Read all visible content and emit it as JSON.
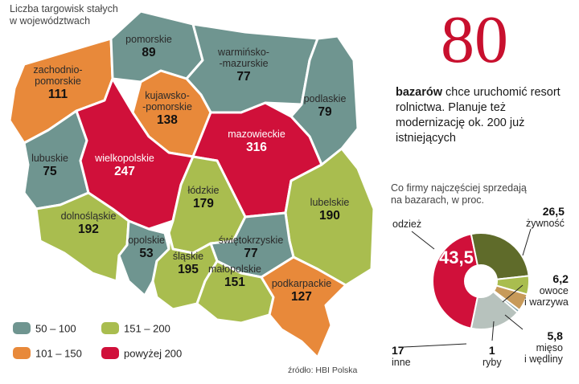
{
  "map": {
    "title_line1": "Liczba targowisk stałych",
    "title_line2": "w województwach",
    "regions": [
      {
        "name": "pomorskie",
        "value": "89",
        "bin": "50 – 100"
      },
      {
        "name": "warmińsko-mazurskie",
        "name_line1": "warmińsko-",
        "name_line2": "-mazurskie",
        "value": "77",
        "bin": "50 – 100"
      },
      {
        "name": "zachodnio-pomorskie",
        "name_line1": "zachodnio-",
        "name_line2": "pomorskie",
        "value": "111",
        "bin": "101 – 150"
      },
      {
        "name": "kujawsko-pomorskie",
        "name_line1": "kujawsko-",
        "name_line2": "-pomorskie",
        "value": "138",
        "bin": "101 – 150"
      },
      {
        "name": "podlaskie",
        "value": "79",
        "bin": "50 – 100"
      },
      {
        "name": "mazowieckie",
        "value": "316",
        "bin": "powyżej 200"
      },
      {
        "name": "lubuskie",
        "value": "75",
        "bin": "50 – 100"
      },
      {
        "name": "wielkopolskie",
        "value": "247",
        "bin": "powyżej 200"
      },
      {
        "name": "łódzkie",
        "value": "179",
        "bin": "151 – 200"
      },
      {
        "name": "lubelskie",
        "value": "190",
        "bin": "151 – 200"
      },
      {
        "name": "dolnośląskie",
        "value": "192",
        "bin": "151 – 200"
      },
      {
        "name": "opolskie",
        "value": "53",
        "bin": "50 – 100"
      },
      {
        "name": "świętokrzyskie",
        "value": "77",
        "bin": "50 – 100"
      },
      {
        "name": "śląskie",
        "value": "195",
        "bin": "151 – 200"
      },
      {
        "name": "małopolskie",
        "value": "151",
        "bin": "151 – 200"
      },
      {
        "name": "podkarpackie",
        "value": "127",
        "bin": "101 – 150"
      }
    ],
    "legend": [
      {
        "label": "50 – 100",
        "color": "#6f9590"
      },
      {
        "label": "151 – 200",
        "color": "#a9bd4f"
      },
      {
        "label": "101 – 150",
        "color": "#e8893a"
      },
      {
        "label": "powyżej 200",
        "color": "#d0103a"
      }
    ]
  },
  "headline": {
    "big_number": "80",
    "bold_word": "bazarów",
    "text": " chce uruchomić resort rolnictwa. Planuje też modernizację ok. 200 już istniejących"
  },
  "chart_data": {
    "type": "pie",
    "title": "Co firmy najczęściej sprzedają na bazarach, w proc.",
    "slices": [
      {
        "label": "odzież",
        "value": 43.5,
        "value_text": "43,5",
        "color": "#d0103a"
      },
      {
        "label": "żywność",
        "value": 26.5,
        "value_text": "26,5",
        "color": "#5f6b2a"
      },
      {
        "label": "owoce i warzywa",
        "label_line1": "owoce",
        "label_line2": "i warzywa",
        "value": 6.2,
        "value_text": "6,2",
        "color": "#a9bd4f"
      },
      {
        "label": "mięso i wędliny",
        "label_line1": "mięso",
        "label_line2": "i wędliny",
        "value": 5.8,
        "value_text": "5,8",
        "color": "#c79a5a"
      },
      {
        "label": "ryby",
        "value": 1,
        "value_text": "1",
        "color": "#7fa2a8"
      },
      {
        "label": "inne",
        "value": 17,
        "value_text": "17",
        "color": "#b7c2bd"
      }
    ]
  },
  "source": "źródło: HBI Polska"
}
